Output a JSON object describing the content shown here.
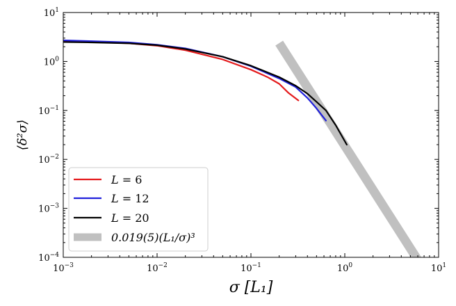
{
  "chart_data": {
    "type": "line",
    "title": "",
    "xlabel": "σ [L₁]",
    "ylabel": "⟨δ²σ⟩",
    "xscale": "log",
    "yscale": "log",
    "xlim": [
      0.001,
      10
    ],
    "ylim": [
      0.0001,
      10
    ],
    "grid": false,
    "legend_position": "lower-left",
    "x_ticks": [
      {
        "value": 0.001,
        "base": "10",
        "exp": "−3"
      },
      {
        "value": 0.01,
        "base": "10",
        "exp": "−2"
      },
      {
        "value": 0.1,
        "base": "10",
        "exp": "−1"
      },
      {
        "value": 1,
        "base": "10",
        "exp": "0"
      },
      {
        "value": 10,
        "base": "10",
        "exp": "1"
      }
    ],
    "y_ticks": [
      {
        "value": 0.0001,
        "base": "10",
        "exp": "−4"
      },
      {
        "value": 0.001,
        "base": "10",
        "exp": "−3"
      },
      {
        "value": 0.01,
        "base": "10",
        "exp": "−2"
      },
      {
        "value": 0.1,
        "base": "10",
        "exp": "−1"
      },
      {
        "value": 1,
        "base": "10",
        "exp": "0"
      },
      {
        "value": 10,
        "base": "10",
        "exp": "1"
      }
    ],
    "series": [
      {
        "name": "L = 6",
        "color": "#e41a1c",
        "x": [
          0.001,
          0.002,
          0.005,
          0.01,
          0.02,
          0.05,
          0.1,
          0.15,
          0.2,
          0.25,
          0.32
        ],
        "y": [
          2.6,
          2.5,
          2.35,
          2.1,
          1.7,
          1.1,
          0.68,
          0.48,
          0.35,
          0.23,
          0.16
        ]
      },
      {
        "name": "L = 12",
        "color": "#1f1fdb",
        "x": [
          0.001,
          0.002,
          0.005,
          0.01,
          0.02,
          0.05,
          0.1,
          0.2,
          0.3,
          0.4,
          0.5,
          0.63
        ],
        "y": [
          2.7,
          2.6,
          2.45,
          2.2,
          1.85,
          1.25,
          0.8,
          0.45,
          0.3,
          0.18,
          0.11,
          0.062
        ]
      },
      {
        "name": "L = 20",
        "color": "#000000",
        "x": [
          0.001,
          0.002,
          0.005,
          0.01,
          0.02,
          0.05,
          0.1,
          0.2,
          0.3,
          0.4,
          0.5,
          0.63,
          0.8,
          1.05
        ],
        "y": [
          2.5,
          2.45,
          2.35,
          2.15,
          1.8,
          1.25,
          0.82,
          0.48,
          0.32,
          0.22,
          0.15,
          0.1,
          0.05,
          0.02
        ]
      }
    ],
    "fit_line": {
      "name": "0.019(5)(L₁/σ)³",
      "color": "#c0c0c0",
      "prefactor": 0.019,
      "exponent": -3
    },
    "legend": [
      {
        "label_main": "L",
        "label_rest": " = 6",
        "color": "#e41a1c",
        "kind": "line"
      },
      {
        "label_main": "L",
        "label_rest": " = 12",
        "color": "#1f1fdb",
        "kind": "line"
      },
      {
        "label_main": "L",
        "label_rest": " = 20",
        "color": "#000000",
        "kind": "line"
      },
      {
        "label_main": "0.019(5)(L₁/σ)³",
        "label_rest": "",
        "color": "#c0c0c0",
        "kind": "band"
      }
    ]
  }
}
